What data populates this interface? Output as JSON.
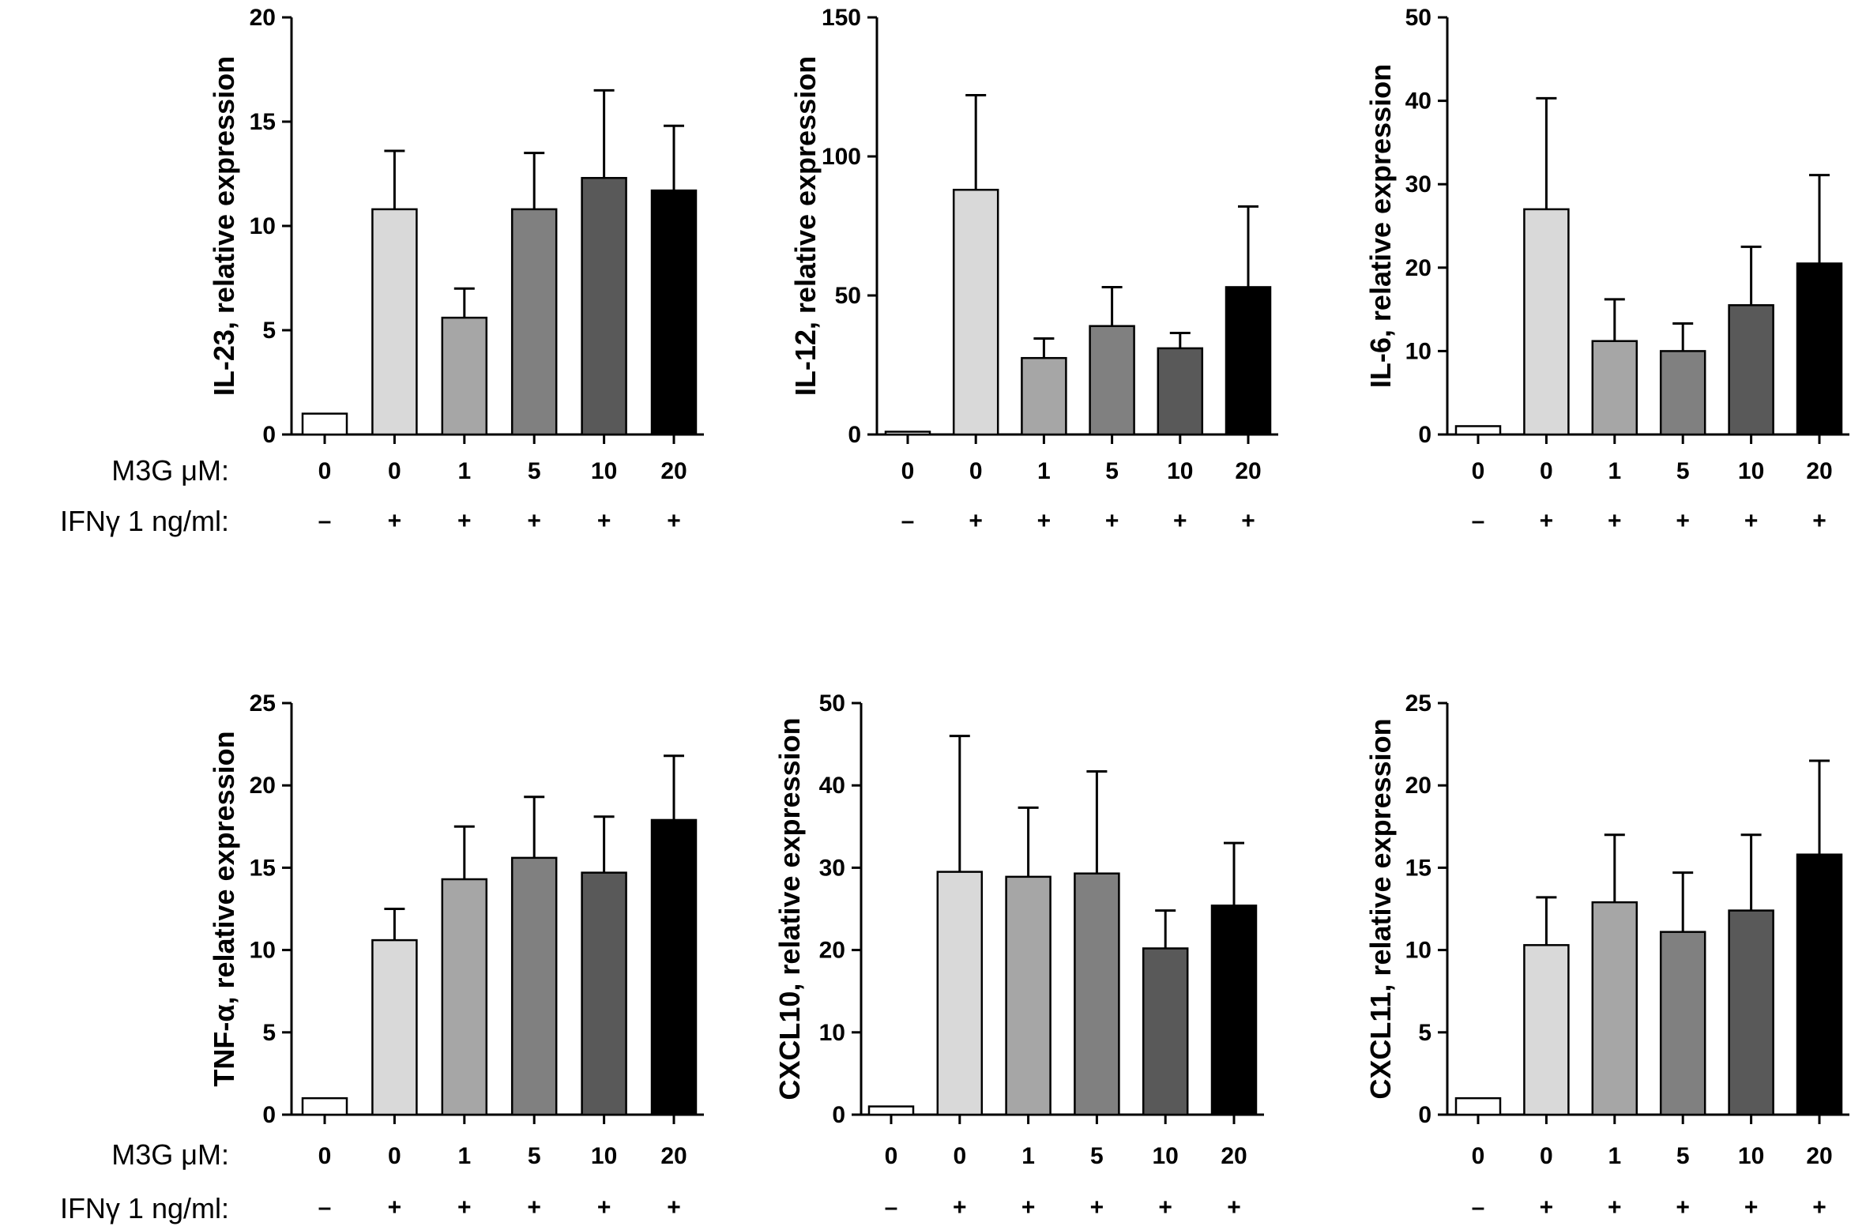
{
  "row_labels": {
    "m3g": "M3G μM:",
    "ifn": "IFNγ 1 ng/ml:"
  },
  "chart_data": [
    {
      "type": "bar",
      "ylabel": "IL-23, relative expression",
      "ylim": [
        0,
        20
      ],
      "yticks": [
        0,
        5,
        10,
        15,
        20
      ],
      "categories": [
        "0",
        "0",
        "1",
        "5",
        "10",
        "20"
      ],
      "ifn": [
        "–",
        "+",
        "+",
        "+",
        "+",
        "+"
      ],
      "values": [
        1.0,
        10.8,
        5.6,
        10.8,
        12.3,
        11.7
      ],
      "errors": [
        0,
        2.8,
        1.4,
        2.7,
        4.2,
        3.1
      ],
      "colors": [
        "#ffffff",
        "#d9d9d9",
        "#a6a6a6",
        "#808080",
        "#595959",
        "#000000"
      ]
    },
    {
      "type": "bar",
      "ylabel": "IL-12, relative expression",
      "ylim": [
        0,
        150
      ],
      "yticks": [
        0,
        50,
        100,
        150
      ],
      "categories": [
        "0",
        "0",
        "1",
        "5",
        "10",
        "20"
      ],
      "ifn": [
        "–",
        "+",
        "+",
        "+",
        "+",
        "+"
      ],
      "values": [
        1.0,
        88,
        27.5,
        39,
        31,
        53
      ],
      "errors": [
        0,
        34,
        7,
        14,
        5.5,
        29
      ],
      "colors": [
        "#ffffff",
        "#d9d9d9",
        "#a6a6a6",
        "#808080",
        "#595959",
        "#000000"
      ]
    },
    {
      "type": "bar",
      "ylabel": "IL-6, relative expression",
      "ylim": [
        0,
        50
      ],
      "yticks": [
        0,
        10,
        20,
        30,
        40,
        50
      ],
      "categories": [
        "0",
        "0",
        "1",
        "5",
        "10",
        "20"
      ],
      "ifn": [
        "–",
        "+",
        "+",
        "+",
        "+",
        "+"
      ],
      "values": [
        1.0,
        27,
        11.2,
        10.0,
        15.5,
        20.5
      ],
      "errors": [
        0,
        13.3,
        5.0,
        3.3,
        7.0,
        10.6
      ],
      "colors": [
        "#ffffff",
        "#d9d9d9",
        "#a6a6a6",
        "#808080",
        "#595959",
        "#000000"
      ]
    },
    {
      "type": "bar",
      "ylabel": "TNF-α, relative expression",
      "ylim": [
        0,
        25
      ],
      "yticks": [
        0,
        5,
        10,
        15,
        20,
        25
      ],
      "categories": [
        "0",
        "0",
        "1",
        "5",
        "10",
        "20"
      ],
      "ifn": [
        "–",
        "+",
        "+",
        "+",
        "+",
        "+"
      ],
      "values": [
        1.0,
        10.6,
        14.3,
        15.6,
        14.7,
        17.9
      ],
      "errors": [
        0,
        1.9,
        3.2,
        3.7,
        3.4,
        3.9
      ],
      "colors": [
        "#ffffff",
        "#d9d9d9",
        "#a6a6a6",
        "#808080",
        "#595959",
        "#000000"
      ]
    },
    {
      "type": "bar",
      "ylabel": "CXCL10, relative expression",
      "ylim": [
        0,
        50
      ],
      "yticks": [
        0,
        10,
        20,
        30,
        40,
        50
      ],
      "categories": [
        "0",
        "0",
        "1",
        "5",
        "10",
        "20"
      ],
      "ifn": [
        "–",
        "+",
        "+",
        "+",
        "+",
        "+"
      ],
      "values": [
        1.0,
        29.5,
        28.9,
        29.3,
        20.2,
        25.4
      ],
      "errors": [
        0,
        16.5,
        8.4,
        12.4,
        4.6,
        7.6
      ],
      "colors": [
        "#ffffff",
        "#d9d9d9",
        "#a6a6a6",
        "#808080",
        "#595959",
        "#000000"
      ]
    },
    {
      "type": "bar",
      "ylabel": "CXCL11, relative expression",
      "ylim": [
        0,
        25
      ],
      "yticks": [
        0,
        5,
        10,
        15,
        20,
        25
      ],
      "categories": [
        "0",
        "0",
        "1",
        "5",
        "10",
        "20"
      ],
      "ifn": [
        "–",
        "+",
        "+",
        "+",
        "+",
        "+"
      ],
      "values": [
        1.0,
        10.3,
        12.9,
        11.1,
        12.4,
        15.8
      ],
      "errors": [
        0,
        2.9,
        4.1,
        3.6,
        4.6,
        5.7
      ],
      "colors": [
        "#ffffff",
        "#d9d9d9",
        "#a6a6a6",
        "#808080",
        "#595959",
        "#000000"
      ]
    }
  ]
}
